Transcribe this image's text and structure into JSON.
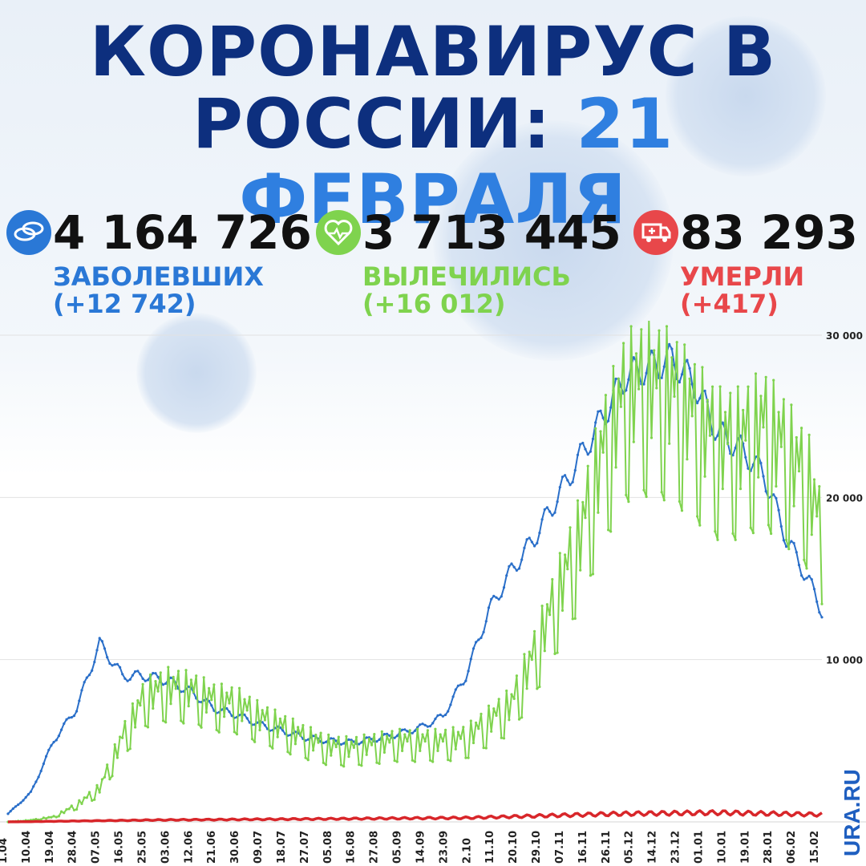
{
  "header": {
    "line1": "КОРОНАВИРУС В",
    "line2_main": "РОССИИ:",
    "line2_accent": "21 ФЕВРАЛЯ"
  },
  "stats": [
    {
      "value": "4 164 726",
      "label": "ЗАБОЛЕВШИХ",
      "delta": "(+12 742)",
      "color": "#2a78d6",
      "icon": "pills-icon"
    },
    {
      "value": "3 713 445",
      "label": "ВЫЛЕЧИЛИСЬ",
      "delta": "(+16 012)",
      "color": "#7fd34e",
      "icon": "heart-pulse-icon"
    },
    {
      "value": "83 293",
      "label": "УМЕРЛИ",
      "delta": "(+417)",
      "color": "#e8474a",
      "icon": "ambulance-icon"
    }
  ],
  "logo": {
    "text": "URA.RU"
  },
  "chart_data": {
    "type": "line",
    "ylim": [
      0,
      30000
    ],
    "y_ticks": [
      "10 000",
      "20 000",
      "30 000"
    ],
    "y_tick_values": [
      10000,
      20000,
      30000
    ],
    "grid": true,
    "x_tick_labels": [
      "1.04",
      "10.04",
      "19.04",
      "28.04",
      "07.05",
      "16.05",
      "25.05",
      "03.06",
      "12.06",
      "21.06",
      "30.06",
      "09.07",
      "18.07",
      "27.07",
      "05.08",
      "16.08",
      "27.08",
      "05.09",
      "14.09",
      "23.09",
      "2.10",
      "11.10",
      "20.10",
      "29.10",
      "07.11",
      "16.11",
      "26.11",
      "05.12",
      "14.12",
      "23.12",
      "01.01",
      "10.01",
      "19.01",
      "28.01",
      "06.02",
      "15.02"
    ],
    "series": [
      {
        "color": "#2a6fc9",
        "anchors": [
          [
            0,
            500
          ],
          [
            9,
            1800
          ],
          [
            18,
            5000
          ],
          [
            27,
            7000
          ],
          [
            36,
            11000
          ],
          [
            45,
            9000
          ],
          [
            54,
            9000
          ],
          [
            63,
            8700
          ],
          [
            72,
            8000
          ],
          [
            81,
            7000
          ],
          [
            90,
            6600
          ],
          [
            99,
            6000
          ],
          [
            108,
            5600
          ],
          [
            117,
            5200
          ],
          [
            126,
            5000
          ],
          [
            135,
            4900
          ],
          [
            144,
            5100
          ],
          [
            153,
            5400
          ],
          [
            162,
            5800
          ],
          [
            171,
            6500
          ],
          [
            180,
            9000
          ],
          [
            189,
            13000
          ],
          [
            198,
            15500
          ],
          [
            207,
            17500
          ],
          [
            216,
            20000
          ],
          [
            225,
            22500
          ],
          [
            234,
            25000
          ],
          [
            243,
            27500
          ],
          [
            252,
            28000
          ],
          [
            261,
            28500
          ],
          [
            270,
            27000
          ],
          [
            279,
            24000
          ],
          [
            288,
            23000
          ],
          [
            297,
            21500
          ],
          [
            306,
            17500
          ],
          [
            315,
            14800
          ],
          [
            320,
            13000
          ]
        ]
      },
      {
        "color": "#7fd34e",
        "anchors": [
          [
            0,
            0
          ],
          [
            9,
            100
          ],
          [
            18,
            300
          ],
          [
            27,
            1000
          ],
          [
            36,
            2000
          ],
          [
            45,
            5000
          ],
          [
            54,
            7500
          ],
          [
            63,
            8000
          ],
          [
            72,
            7800
          ],
          [
            81,
            7200
          ],
          [
            90,
            7000
          ],
          [
            99,
            6200
          ],
          [
            108,
            5600
          ],
          [
            117,
            5000
          ],
          [
            126,
            4500
          ],
          [
            135,
            4400
          ],
          [
            144,
            4600
          ],
          [
            153,
            4800
          ],
          [
            162,
            4800
          ],
          [
            171,
            4800
          ],
          [
            180,
            5000
          ],
          [
            189,
            6000
          ],
          [
            198,
            7000
          ],
          [
            207,
            10000
          ],
          [
            216,
            13500
          ],
          [
            225,
            17000
          ],
          [
            234,
            22000
          ],
          [
            243,
            25500
          ],
          [
            252,
            26000
          ],
          [
            261,
            25500
          ],
          [
            270,
            24000
          ],
          [
            279,
            22500
          ],
          [
            288,
            22500
          ],
          [
            297,
            23500
          ],
          [
            306,
            22000
          ],
          [
            315,
            20000
          ],
          [
            320,
            17000
          ]
        ]
      },
      {
        "color": "#d8262a",
        "anchors": [
          [
            0,
            0
          ],
          [
            60,
            120
          ],
          [
            120,
            180
          ],
          [
            180,
            250
          ],
          [
            240,
            500
          ],
          [
            280,
            570
          ],
          [
            320,
            450
          ]
        ]
      }
    ]
  }
}
